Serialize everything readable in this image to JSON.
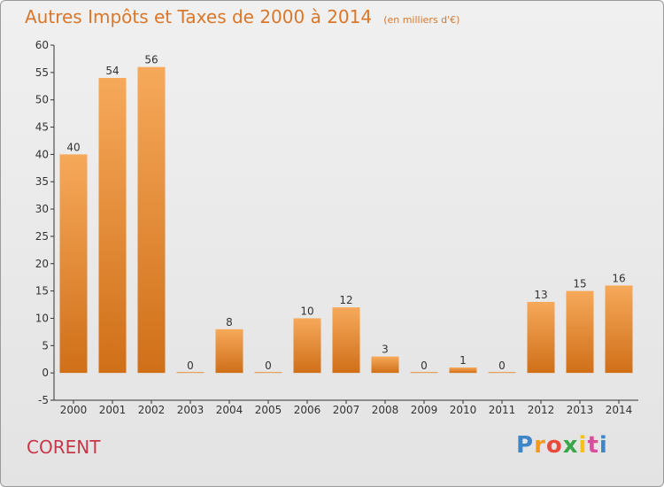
{
  "header": {
    "title": "Autres Impôts et Taxes de 2000 à 2014",
    "subtitle": "(en milliers d'€)"
  },
  "footer": {
    "commune": "CORENT",
    "logo_letters": [
      "P",
      "r",
      "o",
      "x",
      "i",
      "t",
      "i"
    ],
    "logo_colors": [
      "#3f86c9",
      "#f29a1f",
      "#e84b3c",
      "#3aa54a",
      "#f2c21a",
      "#d94e9a",
      "#3f86c9"
    ]
  },
  "colors": {
    "bar_light": "#f6a95a",
    "bar_dark": "#d06f18",
    "title": "#d9772a",
    "commune": "#c8364a"
  },
  "chart_data": {
    "type": "bar",
    "title": "Autres Impôts et Taxes de 2000 à 2014",
    "subtitle": "(en milliers d'€)",
    "categories": [
      "2000",
      "2001",
      "2002",
      "2003",
      "2004",
      "2005",
      "2006",
      "2007",
      "2008",
      "2009",
      "2010",
      "2011",
      "2012",
      "2013",
      "2014"
    ],
    "values": [
      40,
      54,
      56,
      0,
      8,
      0,
      10,
      12,
      3,
      0,
      1,
      0,
      13,
      15,
      16
    ],
    "data_labels": [
      "40",
      "54",
      "56",
      "0",
      "8",
      "0",
      "10",
      "12",
      "3",
      "0",
      "1",
      "0",
      "13",
      "15",
      "16"
    ],
    "ylim": [
      -5,
      60
    ],
    "yticks": [
      -5,
      0,
      5,
      10,
      15,
      20,
      25,
      30,
      35,
      40,
      45,
      50,
      55,
      60
    ],
    "xlabel": "",
    "ylabel": "",
    "grid": false
  }
}
